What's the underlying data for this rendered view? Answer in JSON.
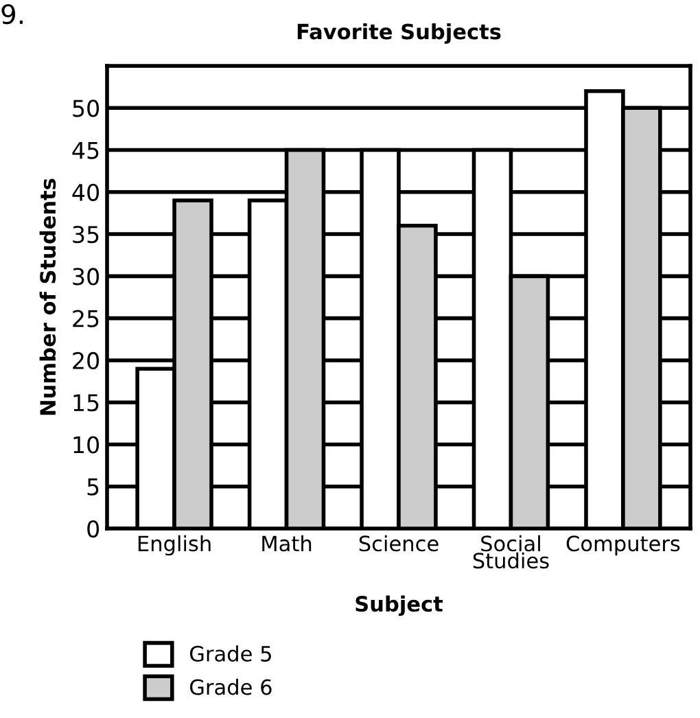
{
  "chart_data": {
    "type": "bar",
    "title": "Favorite Subjects",
    "xlabel": "Subject",
    "ylabel": "Number of Students",
    "categories": [
      "English",
      "Math",
      "Science",
      "Social\nStudies",
      "Computers"
    ],
    "series": [
      {
        "name": "Grade 5",
        "color": "#ffffff",
        "values": [
          19,
          39,
          45,
          45,
          52
        ]
      },
      {
        "name": "Grade 6",
        "color": "#cccccc",
        "values": [
          39,
          45,
          36,
          30,
          50
        ]
      }
    ],
    "ylim": [
      0,
      55
    ],
    "yticks": [
      0,
      5,
      10,
      15,
      20,
      25,
      30,
      35,
      40,
      45,
      50
    ],
    "grid": "y",
    "legend": "bottom left",
    "annotations": [
      "9."
    ]
  }
}
